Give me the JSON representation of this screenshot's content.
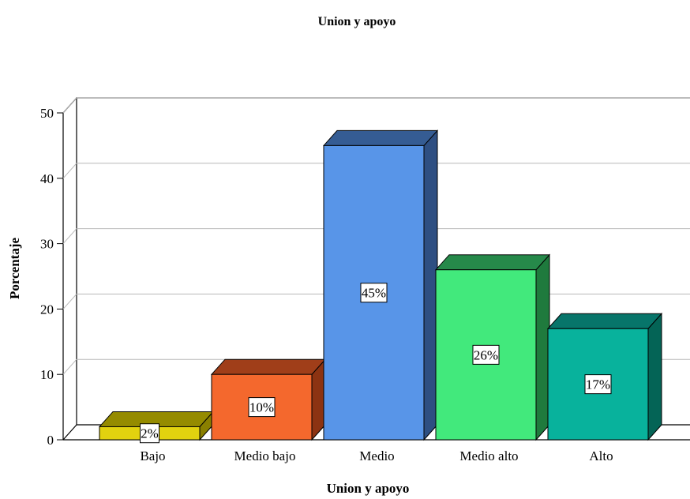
{
  "chart_data": {
    "type": "bar",
    "title": "Union y apoyo",
    "xlabel": "Union y apoyo",
    "ylabel": "Porcentaje",
    "categories": [
      "Bajo",
      "Medio bajo",
      "Medio",
      "Medio alto",
      "Alto"
    ],
    "values": [
      2,
      10,
      45,
      26,
      17
    ],
    "data_labels": [
      "2%",
      "10%",
      "45%",
      "26%",
      "17%"
    ],
    "ylim": [
      0,
      50
    ],
    "yticks": [
      "0",
      "10",
      "20",
      "30",
      "40",
      "50"
    ],
    "grid": true,
    "style": "3d",
    "colors": [
      {
        "front": "#e2d20f",
        "side": "#8a8000",
        "top": "#958b00"
      },
      {
        "front": "#f4682d",
        "side": "#8c3312",
        "top": "#a03e19"
      },
      {
        "front": "#5895e8",
        "side": "#2e4f82",
        "top": "#355c93"
      },
      {
        "front": "#42e97c",
        "side": "#1f7a3d",
        "top": "#26894a"
      },
      {
        "front": "#08b29c",
        "side": "#046456",
        "top": "#07756a"
      }
    ]
  }
}
